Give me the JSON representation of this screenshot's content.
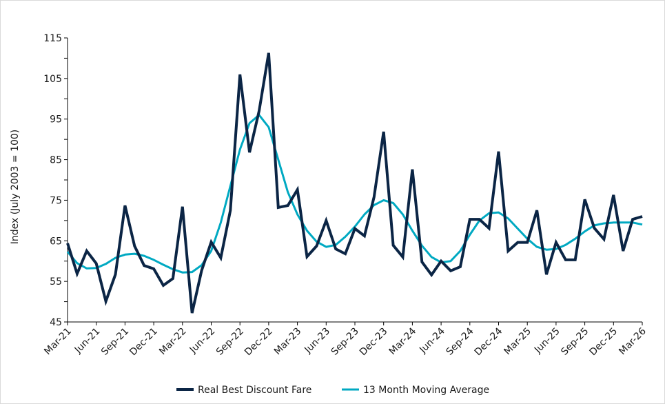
{
  "chart_data": {
    "type": "line",
    "title": "",
    "xlabel": "",
    "ylabel": "Index (July 2003 = 100)",
    "ylim": [
      45,
      115
    ],
    "yticks": [
      45,
      55,
      65,
      75,
      85,
      95,
      105,
      115
    ],
    "xtick_labels": [
      "Mar-21",
      "Jun-21",
      "Sep-21",
      "Dec-21",
      "Mar-22",
      "Jun-22",
      "Sep-22",
      "Dec-22",
      "Mar-23",
      "Jun-23",
      "Sep-23",
      "Dec-23",
      "Mar-24",
      "Jun-24",
      "Sep-24",
      "Dec-24",
      "Mar-25",
      "Jun-25",
      "Sep-25",
      "Dec-25",
      "Mar-26"
    ],
    "x_start": "Mar-21",
    "x_end": "Mar-26",
    "frequency": "monthly",
    "grid": false,
    "legend_position": "bottom",
    "series": [
      {
        "name": "Real Best Discount Fare",
        "color": "#0b2545",
        "values": [
          64.4,
          56.9,
          62.5,
          59.4,
          50.1,
          56.7,
          73.7,
          63.7,
          58.9,
          58.1,
          54.0,
          55.7,
          73.4,
          47.2,
          57.7,
          64.7,
          60.8,
          72.5,
          106.0,
          86.8,
          97.0,
          111.3,
          73.2,
          73.7,
          77.6,
          61.1,
          63.7,
          70.0,
          63.0,
          61.8,
          68.0,
          66.2,
          75.8,
          91.9,
          63.9,
          61.0,
          82.6,
          59.8,
          56.6,
          60.0,
          57.6,
          58.6,
          70.3,
          70.3,
          68.1,
          87.0,
          62.5,
          64.6,
          64.6,
          72.5,
          56.7,
          64.6,
          60.3,
          60.3,
          75.2,
          68.1,
          65.4,
          76.3,
          62.5,
          70.3,
          71.0
        ]
      },
      {
        "name": "13 Month Moving Average",
        "color": "#00a9c2",
        "values": [
          62.3,
          59.5,
          58.2,
          58.3,
          59.3,
          60.8,
          61.6,
          61.8,
          61.3,
          60.3,
          59.1,
          58.0,
          57.2,
          57.3,
          59.0,
          62.5,
          69.5,
          78.5,
          87.5,
          94.0,
          96.0,
          93.0,
          85.0,
          77.0,
          71.5,
          67.5,
          64.8,
          63.5,
          64.0,
          66.0,
          68.5,
          71.5,
          73.8,
          75.0,
          74.3,
          71.5,
          67.5,
          63.8,
          61.0,
          59.7,
          60.0,
          62.5,
          66.5,
          70.0,
          71.8,
          72.0,
          70.5,
          68.0,
          65.5,
          63.5,
          62.8,
          63.0,
          64.0,
          65.5,
          67.3,
          68.8,
          69.3,
          69.5,
          69.5,
          69.5,
          69.0
        ]
      }
    ]
  }
}
